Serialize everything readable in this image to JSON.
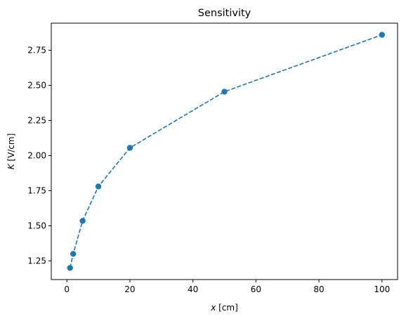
{
  "chart_data": {
    "type": "line",
    "title": "Sensitivity",
    "xlabel": {
      "var": "x",
      "unit": " [cm]"
    },
    "ylabel": {
      "var": "K",
      "unit": " [V/cm]"
    },
    "xlim": [
      -4.95,
      104.95
    ],
    "ylim": [
      1.117,
      2.943
    ],
    "xticks": [
      0,
      20,
      40,
      60,
      80,
      100
    ],
    "xtick_labels": [
      "0",
      "20",
      "40",
      "60",
      "80",
      "100"
    ],
    "yticks": [
      1.25,
      1.5,
      1.75,
      2.0,
      2.25,
      2.5,
      2.75
    ],
    "ytick_labels": [
      "1.25",
      "1.50",
      "1.75",
      "2.00",
      "2.25",
      "2.50",
      "2.75"
    ],
    "grid": false,
    "series": [
      {
        "x": [
          1,
          2,
          5,
          10,
          20,
          50,
          100
        ],
        "y": [
          1.2,
          1.3,
          1.535,
          1.78,
          2.055,
          2.455,
          2.86
        ],
        "color": "#1f77b4",
        "line_style": "dashed",
        "marker": "circle"
      }
    ]
  }
}
